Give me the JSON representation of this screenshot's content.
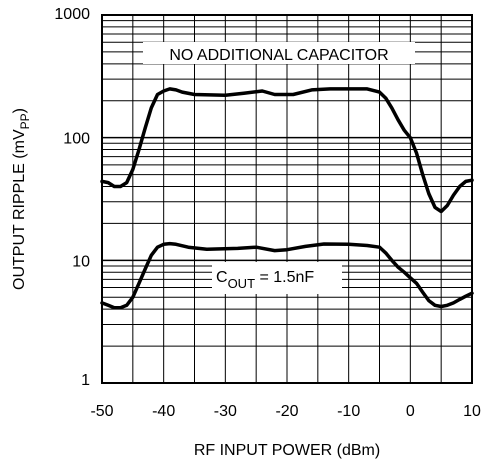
{
  "chart_data": {
    "type": "line",
    "xlabel": "RF INPUT POWER (dBm)",
    "ylabel": {
      "prefix": "OUTPUT RIPPLE (mV",
      "sub": "PP",
      "suffix": ")"
    },
    "xlim": [
      -50,
      10
    ],
    "ylim": [
      1,
      1000
    ],
    "yscale": "log",
    "grid": true,
    "x_ticks": [
      "-50",
      "-40",
      "-30",
      "-20",
      "-10",
      "0",
      "10"
    ],
    "y_ticks": [
      "1",
      "10",
      "100",
      "1000"
    ],
    "annotations": [
      {
        "id": "no_cap",
        "text": "NO ADDITIONAL CAPACITOR"
      },
      {
        "id": "cout",
        "prefix": "C",
        "sub": "OUT",
        "suffix": " = 1.5nF"
      }
    ],
    "series": [
      {
        "id": "no_cap",
        "points": [
          [
            -50,
            44
          ],
          [
            -49,
            43
          ],
          [
            -48,
            40
          ],
          [
            -47,
            40
          ],
          [
            -46,
            43
          ],
          [
            -45,
            55
          ],
          [
            -44,
            80
          ],
          [
            -43,
            120
          ],
          [
            -42,
            175
          ],
          [
            -41,
            225
          ],
          [
            -40,
            240
          ],
          [
            -39,
            250
          ],
          [
            -38,
            245
          ],
          [
            -37,
            235
          ],
          [
            -35,
            225
          ],
          [
            -30,
            222
          ],
          [
            -27,
            230
          ],
          [
            -24,
            240
          ],
          [
            -22,
            225
          ],
          [
            -19,
            225
          ],
          [
            -16,
            245
          ],
          [
            -13,
            250
          ],
          [
            -10,
            250
          ],
          [
            -7,
            250
          ],
          [
            -5,
            235
          ],
          [
            -4,
            210
          ],
          [
            -3,
            175
          ],
          [
            -2,
            140
          ],
          [
            -1,
            115
          ],
          [
            0,
            100
          ],
          [
            1,
            75
          ],
          [
            2,
            50
          ],
          [
            3,
            35
          ],
          [
            4,
            27
          ],
          [
            5,
            25
          ],
          [
            6,
            28
          ],
          [
            7,
            34
          ],
          [
            8,
            40
          ],
          [
            9,
            44
          ],
          [
            10,
            45
          ]
        ]
      },
      {
        "id": "cout_1p5nF",
        "points": [
          [
            -50,
            4.5
          ],
          [
            -49,
            4.3
          ],
          [
            -48,
            4.1
          ],
          [
            -47,
            4.1
          ],
          [
            -46,
            4.3
          ],
          [
            -45,
            5.0
          ],
          [
            -44,
            6.5
          ],
          [
            -43,
            8.5
          ],
          [
            -42,
            11
          ],
          [
            -41,
            12.8
          ],
          [
            -40,
            13.5
          ],
          [
            -39,
            13.7
          ],
          [
            -38,
            13.5
          ],
          [
            -36,
            12.8
          ],
          [
            -33,
            12.3
          ],
          [
            -28,
            12.5
          ],
          [
            -25,
            12.8
          ],
          [
            -22,
            12.0
          ],
          [
            -20,
            12.2
          ],
          [
            -17,
            13.0
          ],
          [
            -14,
            13.6
          ],
          [
            -10,
            13.5
          ],
          [
            -7,
            13.2
          ],
          [
            -5,
            12.8
          ],
          [
            -4,
            11.5
          ],
          [
            -3,
            10.0
          ],
          [
            -2,
            8.8
          ],
          [
            -1,
            8.0
          ],
          [
            0,
            7.2
          ],
          [
            1,
            6.5
          ],
          [
            2,
            5.5
          ],
          [
            3,
            4.7
          ],
          [
            4,
            4.3
          ],
          [
            5,
            4.2
          ],
          [
            6,
            4.3
          ],
          [
            7,
            4.5
          ],
          [
            8,
            4.8
          ],
          [
            9,
            5.1
          ],
          [
            10,
            5.4
          ]
        ]
      }
    ]
  }
}
